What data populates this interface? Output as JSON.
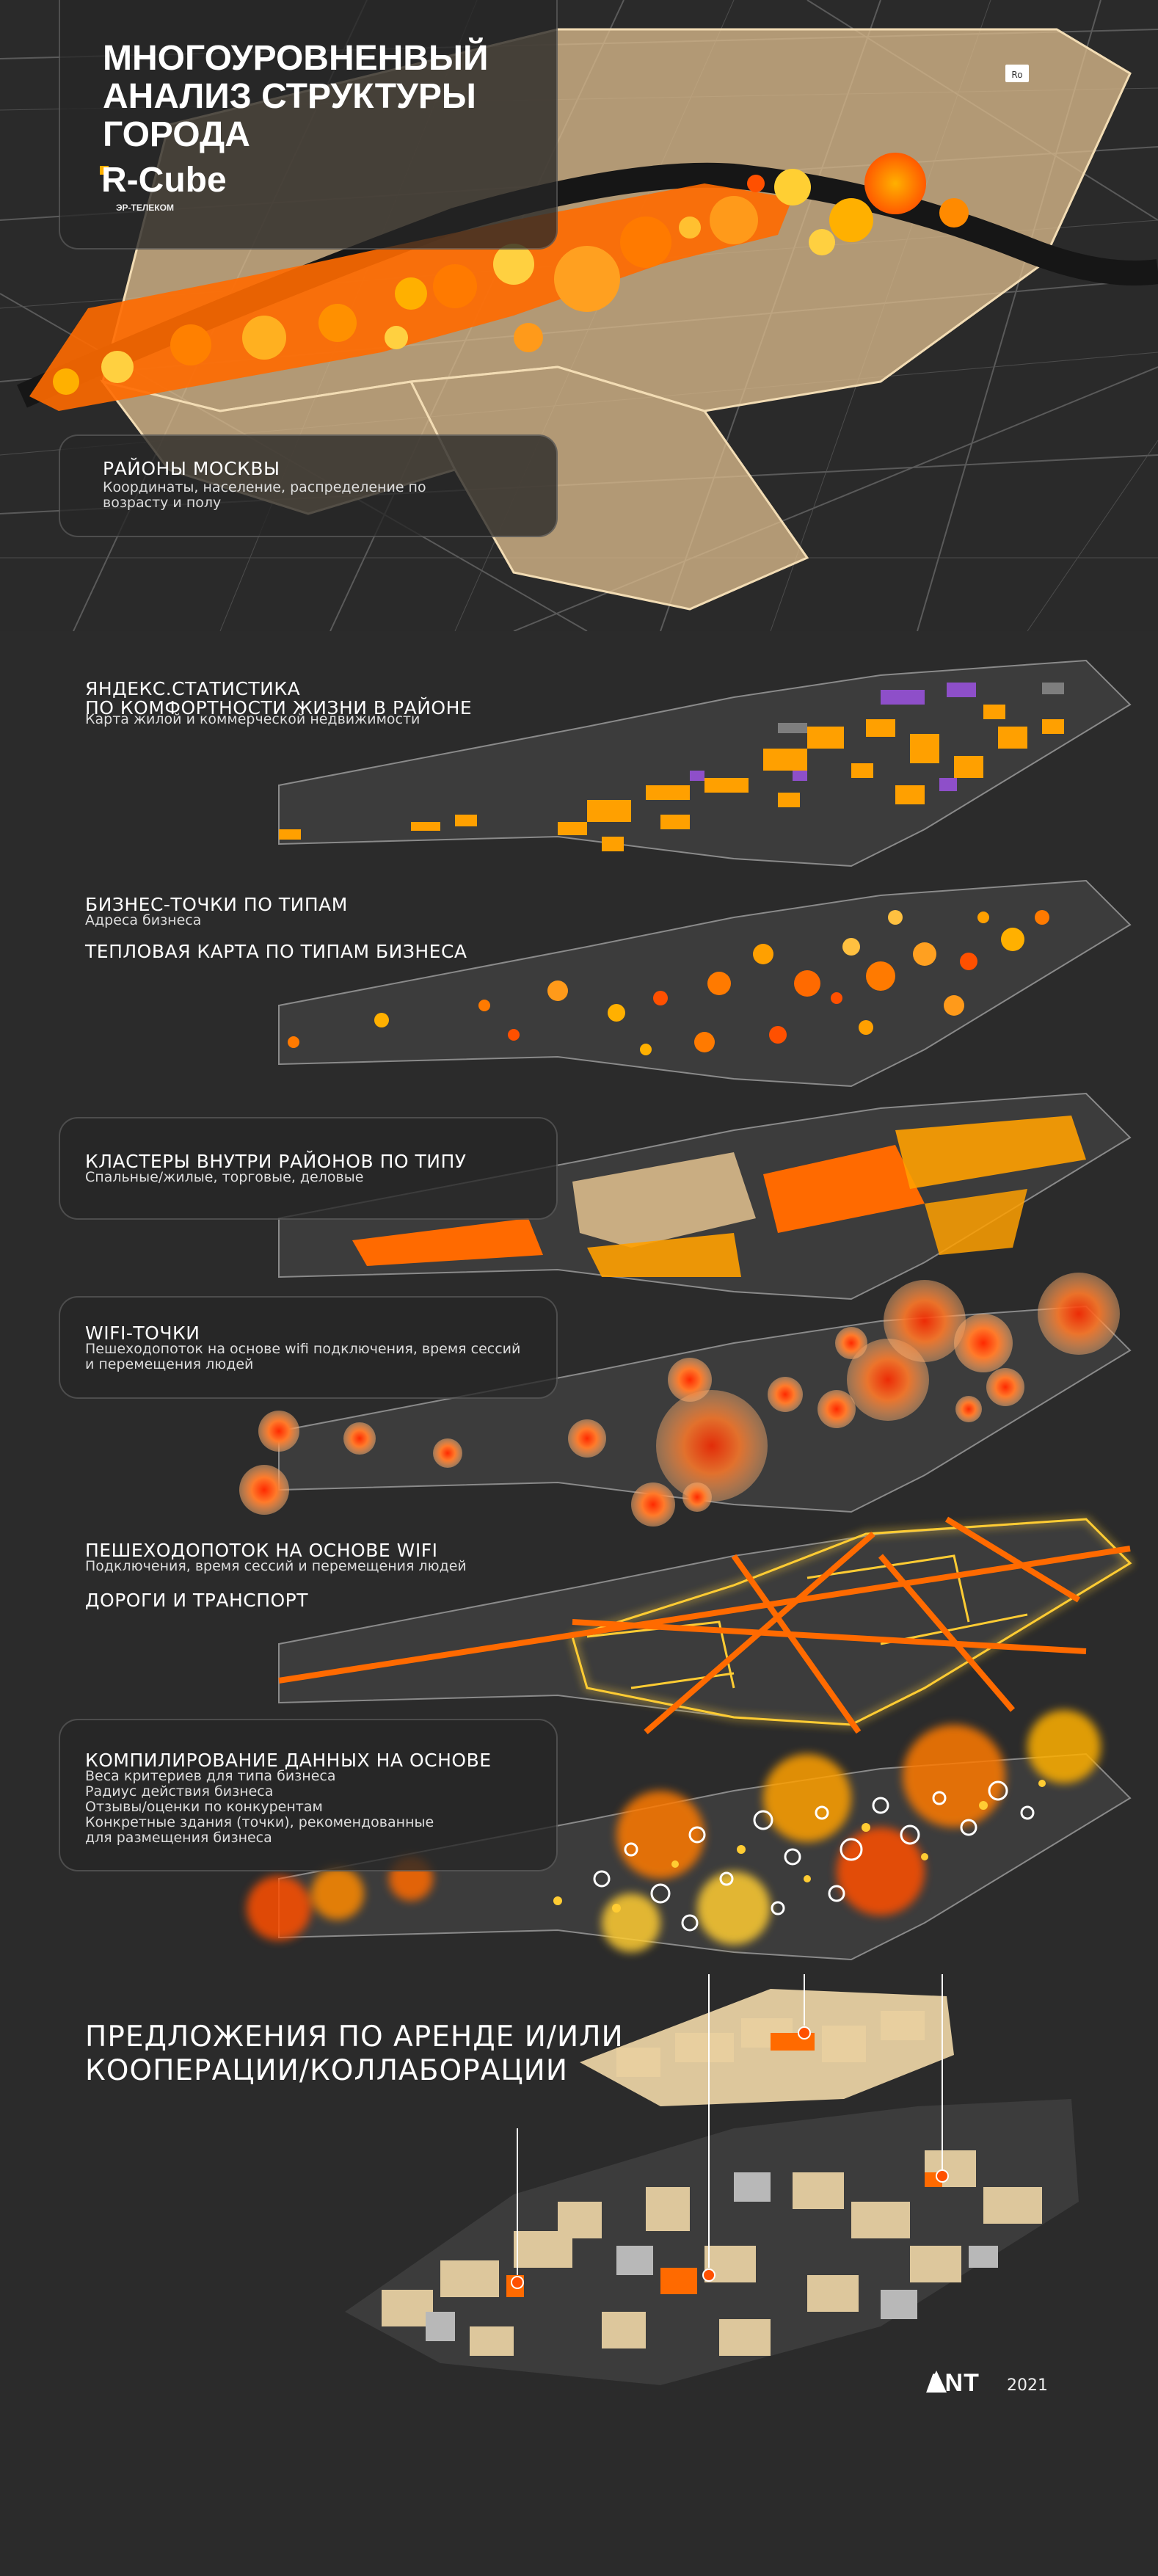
{
  "header": {
    "title_lines": [
      "МНОГОУРОВНЕНВЫЙ",
      "АНАЛИЗ СТРУКТУРЫ",
      "ГОРОДА"
    ],
    "brand_name": "R-Cube",
    "brand_sub": "ЭР-ТЕЛЕКОМ"
  },
  "layers": [
    {
      "label": "РАЙОНЫ МОСКВЫ",
      "sub": "Координаты, население, распределение по возрасту и полу"
    },
    {
      "label": "ЯНДЕКС.СТАТИСТИКА",
      "label2": "ПО КОМФОРТНОСТИ ЖИЗНИ В РАЙОНЕ",
      "sub": "Карта жилой и коммерческой недвижимости"
    },
    {
      "label": "БИЗНЕС-ТОЧКИ ПО ТИПАМ",
      "sub": "Адреса бизнеса"
    },
    {
      "label": "ТЕПЛОВАЯ КАРТА ПО ТИПАМ БИЗНЕСА"
    },
    {
      "label": "КЛАСТЕРЫ ВНУТРИ РАЙОНОВ ПО ТИПУ",
      "sub": "Спальные/жилые, торговые, деловые"
    },
    {
      "label": "WIFI-ТОЧКИ",
      "sub": "Пешеходопоток на основе wifi подключения, время сессий",
      "sub2": "и перемещения людей"
    },
    {
      "label": "ПЕШЕХОДОПОТОК НА ОСНОВЕ WIFI",
      "sub": "Подключения, время сессий и перемещения людей"
    },
    {
      "label": "ДОРОГИ И ТРАНСПОРТ"
    },
    {
      "label": "КОМПИЛИРОВАНИЕ ДАННЫХ НА ОСНОВЕ",
      "items": [
        "Веса критериев для типа бизнеса",
        "Радиус действия бизнеса",
        "Отзывы/оценки по конкурентам",
        "Конкретные здания (точки), рекомендованные",
        "для размещения бизнеса"
      ]
    }
  ],
  "final": {
    "line1": "ПРЕДЛОЖЕНИЯ ПО АРЕНДЕ И/ИЛИ",
    "line2": "КООПЕРАЦИИ/КОЛЛАБОРАЦИИ"
  },
  "map_badge": "Ro",
  "footer": {
    "logo": "ANT",
    "year": "2021"
  },
  "colors": {
    "background": "#2b2b2b",
    "accent_orange": "#ff6a00",
    "accent_yellow": "#ffcc33",
    "beige": "#d8b98a",
    "purple": "#8e4fc9"
  }
}
